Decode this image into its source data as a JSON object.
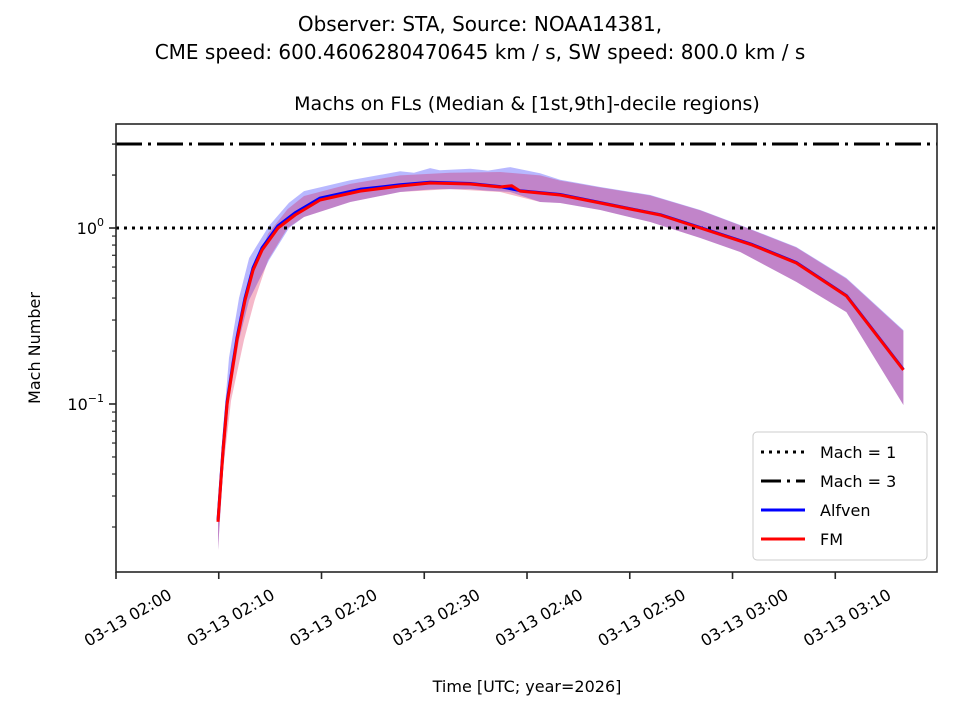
{
  "figure": {
    "suptitle_line1": "Observer: STA, Source: NOAA14381,",
    "suptitle_line2": "CME speed: 600.4606280470645 km / s, SW speed: 800.0 km / s"
  },
  "chart_data": {
    "type": "line",
    "title": "Machs on FLs (Median & [1st,9th]-decile regions)",
    "xlabel": "Time [UTC; year=2026]",
    "ylabel": "Mach Number",
    "yscale": "log",
    "x_unit": "minutes after 03-13 02:00 UTC",
    "xlim": [
      0,
      79.9
    ],
    "ylim": [
      0.0111,
      3.9
    ],
    "x_ticks": [
      {
        "value": 0,
        "label": "03-13 02:00"
      },
      {
        "value": 10,
        "label": "03-13 02:10"
      },
      {
        "value": 20,
        "label": "03-13 02:20"
      },
      {
        "value": 30,
        "label": "03-13 02:30"
      },
      {
        "value": 40,
        "label": "03-13 02:40"
      },
      {
        "value": 50,
        "label": "03-13 02:50"
      },
      {
        "value": 60,
        "label": "03-13 03:00"
      },
      {
        "value": 70,
        "label": "03-13 03:10"
      }
    ],
    "y_ticks": [
      {
        "value": 0.1,
        "base": "10",
        "exp": "−1"
      },
      {
        "value": 1,
        "base": "10",
        "exp": "0"
      }
    ],
    "hlines": [
      {
        "name": "Mach = 1",
        "y": 1,
        "style": "dotted",
        "color": "#000000"
      },
      {
        "name": "Mach = 3",
        "y": 3,
        "style": "dashdot",
        "color": "#000000"
      }
    ],
    "series": [
      {
        "name": "Alfven",
        "color": "#0000ff",
        "x": [
          9.93,
          10.42,
          10.81,
          11.78,
          12.56,
          13.34,
          14.22,
          15.77,
          17.43,
          19.86,
          23.76,
          27.65,
          30.57,
          34.47,
          37.39,
          39.34,
          43.23,
          47.13,
          51.02,
          52.97,
          56.86,
          61.93,
          66.21,
          71.08,
          76.63
        ],
        "median": [
          0.0218,
          0.0562,
          0.103,
          0.238,
          0.402,
          0.595,
          0.773,
          1.03,
          1.22,
          1.48,
          1.66,
          1.76,
          1.82,
          1.79,
          1.72,
          1.63,
          1.55,
          1.395,
          1.255,
          1.19,
          1.005,
          0.805,
          0.637,
          0.413,
          0.157
        ],
        "band_x": [
          9.93,
          10.42,
          11.0,
          11.97,
          12.95,
          14.9,
          16.84,
          18.3,
          22.8,
          27.65,
          29.0,
          30.57,
          31.5,
          34.47,
          36.2,
          38.36,
          41.27,
          43.23,
          47.13,
          52.0,
          56.86,
          60.75,
          66.21,
          71.08,
          76.63
        ],
        "band_upper": [
          0.025,
          0.073,
          0.183,
          0.4,
          0.675,
          1.03,
          1.39,
          1.62,
          1.87,
          2.1,
          2.06,
          2.19,
          2.13,
          2.17,
          2.12,
          2.22,
          2.05,
          1.88,
          1.71,
          1.54,
          1.266,
          1.04,
          0.78,
          0.52,
          0.263
        ],
        "band_lower": [
          0.0148,
          0.042,
          0.105,
          0.231,
          0.39,
          0.658,
          1.0,
          1.155,
          1.405,
          1.601,
          1.63,
          1.655,
          1.665,
          1.665,
          1.63,
          1.601,
          1.405,
          1.387,
          1.266,
          1.082,
          0.877,
          0.731,
          0.494,
          0.333,
          0.0987
        ]
      },
      {
        "name": "FM",
        "color": "#ff0000",
        "x": [
          9.93,
          10.42,
          10.81,
          11.78,
          12.56,
          13.34,
          14.22,
          15.77,
          17.43,
          19.86,
          23.76,
          27.65,
          30.57,
          34.47,
          37.39,
          38.5,
          39.34,
          43.23,
          47.13,
          51.02,
          52.97,
          56.86,
          61.93,
          66.21,
          71.08,
          76.63
        ],
        "median": [
          0.0214,
          0.0548,
          0.1,
          0.231,
          0.39,
          0.577,
          0.75,
          1.0,
          1.185,
          1.443,
          1.622,
          1.732,
          1.802,
          1.778,
          1.71,
          1.74,
          1.622,
          1.54,
          1.387,
          1.249,
          1.185,
          1.0,
          0.8,
          0.633,
          0.411,
          0.156
        ],
        "band_x": [
          9.93,
          10.42,
          11.2,
          12.46,
          13.5,
          14.8,
          16.7,
          18.3,
          22.8,
          27.65,
          32.5,
          37.39,
          41.27,
          43.23,
          47.13,
          52.0,
          56.86,
          60.75,
          66.21,
          71.08,
          76.63
        ],
        "band_upper": [
          0.024,
          0.068,
          0.17,
          0.36,
          0.6,
          0.93,
          1.28,
          1.52,
          1.78,
          1.99,
          2.06,
          2.08,
          1.99,
          1.86,
          1.7,
          1.53,
          1.26,
          1.035,
          0.775,
          0.515,
          0.26
        ],
        "band_lower": [
          0.0148,
          0.042,
          0.105,
          0.231,
          0.39,
          0.658,
          1.0,
          1.155,
          1.405,
          1.601,
          1.665,
          1.601,
          1.405,
          1.387,
          1.266,
          1.082,
          0.877,
          0.731,
          0.494,
          0.333,
          0.0987
        ]
      }
    ],
    "legend": {
      "location": "lower-right",
      "entries": [
        {
          "label": "Mach = 1",
          "style": "dotted",
          "color": "#000000"
        },
        {
          "label": "Mach = 3",
          "style": "dashdot",
          "color": "#000000"
        },
        {
          "label": "Alfven",
          "style": "solid",
          "color": "#0000ff"
        },
        {
          "label": "FM",
          "style": "solid",
          "color": "#ff0000"
        }
      ]
    },
    "grid": false
  }
}
